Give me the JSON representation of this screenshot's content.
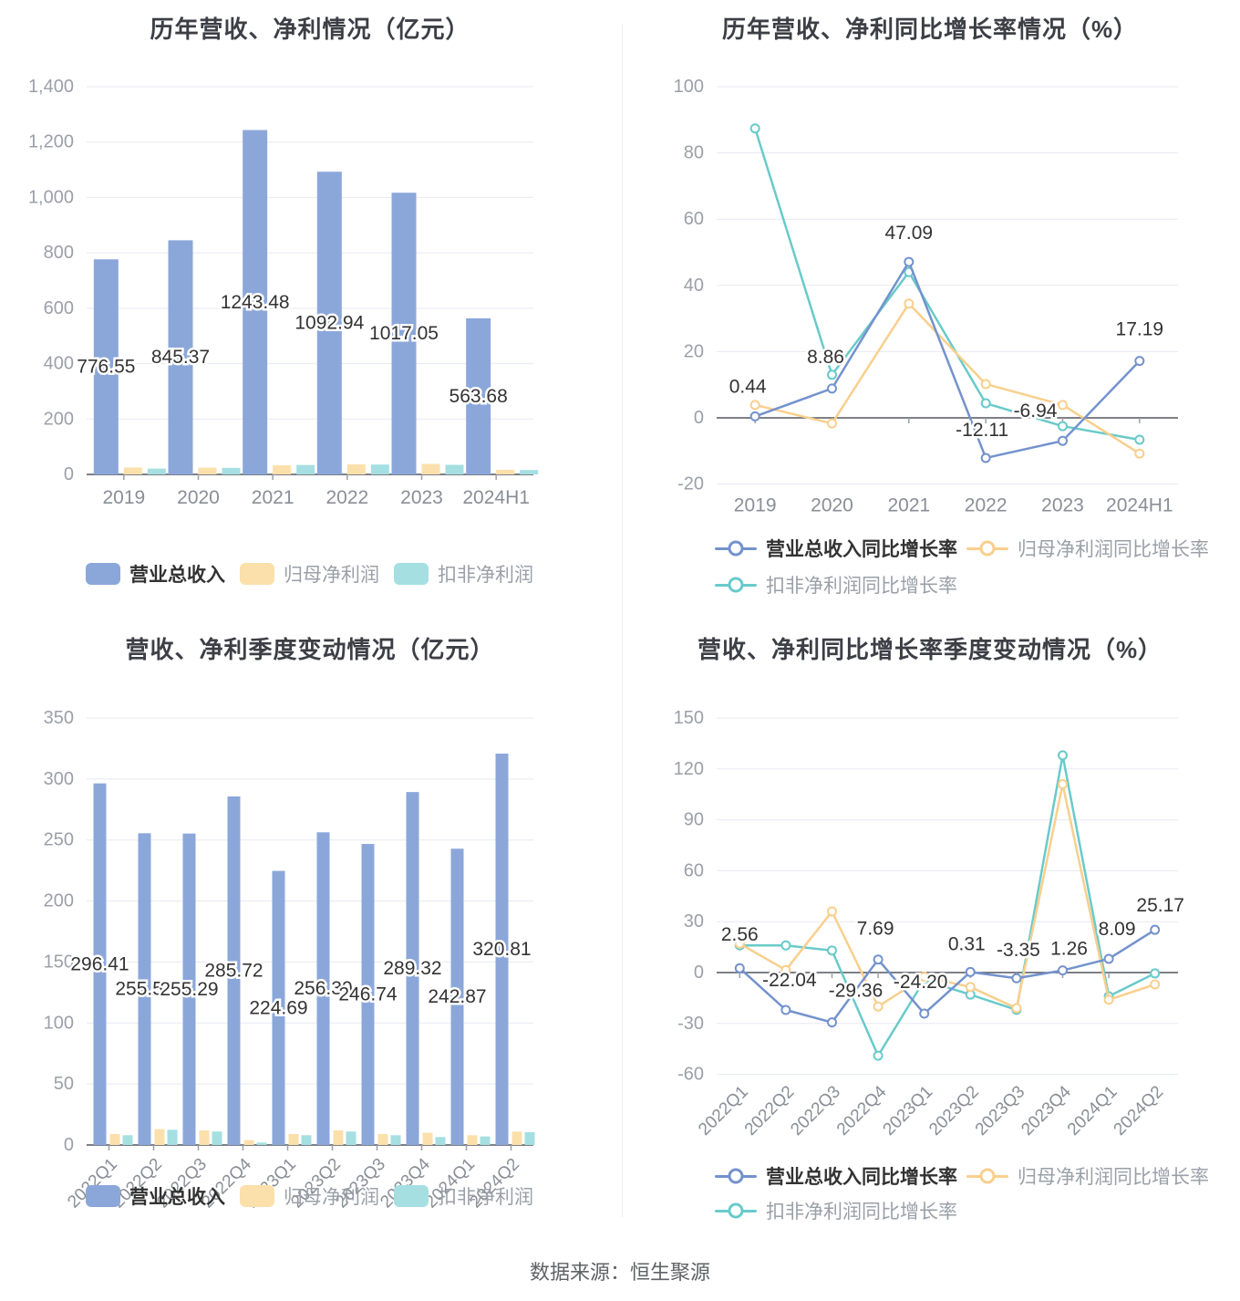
{
  "page": {
    "footer": "数据来源：恒生聚源"
  },
  "colors": {
    "bar_blue": "#8BA7DA",
    "bar_yellow": "#FBE0AB",
    "bar_teal": "#A5DFE1",
    "line_blue": "#7392CD",
    "line_yellow": "#F9CF8D",
    "line_teal": "#69CACA",
    "grid": "#E7E9F2",
    "axis": "#54575E",
    "tick_text": "#9B9FA8",
    "x_text": "#8A8E96",
    "value_text": "#333333",
    "title_text": "#3C3F45"
  },
  "chart_data": [
    {
      "type": "bar",
      "title": "历年营收、净利情况（亿元）",
      "categories": [
        "2019",
        "2020",
        "2021",
        "2022",
        "2023",
        "2024H1"
      ],
      "ylim": [
        0,
        1400
      ],
      "ystep": 200,
      "grid": true,
      "legend_position": "bottom",
      "series": [
        {
          "name": "营业总收入",
          "color": "#8BA7DA",
          "values": [
            776.55,
            845.37,
            1243.48,
            1092.94,
            1017.05,
            563.68
          ],
          "labels": [
            "776.55",
            "845.37",
            "1243.48",
            "1092.94",
            "1017.05",
            "563.68"
          ]
        },
        {
          "name": "归母净利润",
          "color": "#FBE0AB",
          "values": [
            25,
            24.6,
            33.1,
            36.4,
            37.9,
            17
          ]
        },
        {
          "name": "扣非净利润",
          "color": "#A5DFE1",
          "values": [
            21,
            23.7,
            34.1,
            35.6,
            34.7,
            16
          ]
        }
      ]
    },
    {
      "type": "line",
      "title": "历年营收、净利同比增长率情况（%）",
      "categories": [
        "2019",
        "2020",
        "2021",
        "2022",
        "2023",
        "2024H1"
      ],
      "ylim": [
        -20,
        100
      ],
      "ystep": 20,
      "grid": true,
      "legend_position": "bottom",
      "series": [
        {
          "name": "营业总收入同比增长率",
          "color": "#7392CD",
          "values": [
            0.44,
            8.86,
            47.09,
            -12.11,
            -6.94,
            17.19
          ],
          "labels": [
            "0.44",
            "8.86",
            "47.09",
            "-12.11",
            "-6.94",
            "17.19"
          ]
        },
        {
          "name": "归母净利润同比增长率",
          "color": "#F9CF8D",
          "values": [
            3.9,
            -1.7,
            34.5,
            10.2,
            3.9,
            -10.8
          ]
        },
        {
          "name": "扣非净利润同比增长率",
          "color": "#69CACA",
          "values": [
            87.4,
            13,
            44,
            4.4,
            -2.5,
            -6.6
          ]
        }
      ]
    },
    {
      "type": "bar",
      "title": "营收、净利季度变动情况（亿元）",
      "categories": [
        "2022Q1",
        "2022Q2",
        "2022Q3",
        "2022Q4",
        "2023Q1",
        "2023Q2",
        "2023Q3",
        "2023Q4",
        "2024Q1",
        "2024Q2"
      ],
      "ylim": [
        0,
        350
      ],
      "ystep": 50,
      "grid": true,
      "legend_position": "bottom",
      "series": [
        {
          "name": "营业总收入",
          "color": "#8BA7DA",
          "values": [
            296.41,
            255.52,
            255.29,
            285.72,
            224.69,
            256.3,
            246.74,
            289.32,
            242.87,
            320.81
          ],
          "labels": [
            "296.41",
            "255.52",
            "255.29",
            "285.72",
            "224.69",
            "256.30",
            "246.74",
            "289.32",
            "242.87",
            "320.81"
          ]
        },
        {
          "name": "归母净利润",
          "color": "#FBE0AB",
          "values": [
            9,
            13,
            12,
            4,
            9,
            12,
            9,
            10,
            8,
            11
          ]
        },
        {
          "name": "扣非净利润",
          "color": "#A5DFE1",
          "values": [
            8,
            12.5,
            11,
            2,
            8,
            11,
            8,
            6.5,
            7,
            10.5
          ]
        }
      ]
    },
    {
      "type": "line",
      "title": "营收、净利同比增长率季度变动情况（%）",
      "categories": [
        "2022Q1",
        "2022Q2",
        "2022Q3",
        "2022Q4",
        "2023Q1",
        "2023Q2",
        "2023Q3",
        "2023Q4",
        "2024Q1",
        "2024Q2"
      ],
      "ylim": [
        -60,
        150
      ],
      "ystep": 30,
      "grid": true,
      "legend_position": "bottom",
      "series": [
        {
          "name": "营业总收入同比增长率",
          "color": "#7392CD",
          "values": [
            2.56,
            -22.04,
            -29.36,
            7.69,
            -24.2,
            0.31,
            -3.35,
            1.26,
            8.09,
            25.17
          ],
          "labels": [
            "2.56",
            "-22.04",
            "-29.36",
            "7.69",
            "-24.20",
            "0.31",
            "-3.35",
            "1.26",
            "8.09",
            "25.17"
          ]
        },
        {
          "name": "归母净利润同比增长率",
          "color": "#F9CF8D",
          "values": [
            17,
            1.5,
            36,
            -20,
            -2.5,
            -8.5,
            -21,
            111,
            -16,
            -7
          ]
        },
        {
          "name": "扣非净利润同比增长率",
          "color": "#69CACA",
          "values": [
            16,
            16,
            13,
            -49,
            -4.5,
            -13,
            -22,
            128,
            -14,
            -0.5
          ]
        }
      ]
    }
  ]
}
